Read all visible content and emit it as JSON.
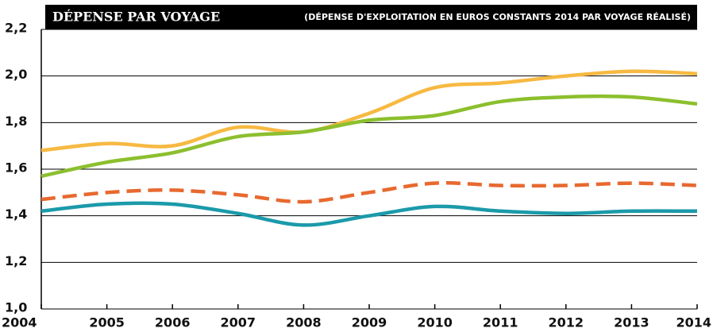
{
  "chart_data": {
    "type": "line",
    "title": "DÉPENSE PAR VOYAGE",
    "subtitle": "(DÉPENSE D'EXPLOITATION EN EUROS CONSTANTS 2014 PAR VOYAGE RÉALISÉ)",
    "x": [
      2004,
      2005,
      2006,
      2007,
      2008,
      2009,
      2010,
      2011,
      2012,
      2013,
      2014
    ],
    "xlim": [
      2004,
      2014
    ],
    "xticks": [
      2004,
      2005,
      2006,
      2007,
      2008,
      2009,
      2010,
      2011,
      2012,
      2013,
      2014
    ],
    "ylim": [
      1.0,
      2.2
    ],
    "yticks": [
      {
        "value": 1.0,
        "label": "1,0"
      },
      {
        "value": 1.2,
        "label": "1,2"
      },
      {
        "value": 1.4,
        "label": "1,4"
      },
      {
        "value": 1.6,
        "label": "1,6"
      },
      {
        "value": 1.8,
        "label": "1,8"
      },
      {
        "value": 2.0,
        "label": "2,0"
      },
      {
        "value": 2.2,
        "label": "2,2"
      }
    ],
    "grid": true,
    "series": [
      {
        "color": "#f7b942",
        "values": [
          1.68,
          1.71,
          1.7,
          1.78,
          1.76,
          1.84,
          1.95,
          1.97,
          2.0,
          2.02,
          2.01
        ]
      },
      {
        "color": "#8cbf2e",
        "values": [
          1.57,
          1.63,
          1.67,
          1.74,
          1.76,
          1.81,
          1.83,
          1.89,
          1.91,
          1.91,
          1.88
        ]
      },
      {
        "color": "#e8692f",
        "dashed": true,
        "values": [
          1.47,
          1.5,
          1.51,
          1.49,
          1.46,
          1.5,
          1.54,
          1.53,
          1.53,
          1.54,
          1.53
        ]
      },
      {
        "color": "#1b9aaa",
        "values": [
          1.42,
          1.45,
          1.45,
          1.41,
          1.36,
          1.4,
          1.44,
          1.42,
          1.41,
          1.42,
          1.42
        ]
      }
    ]
  }
}
